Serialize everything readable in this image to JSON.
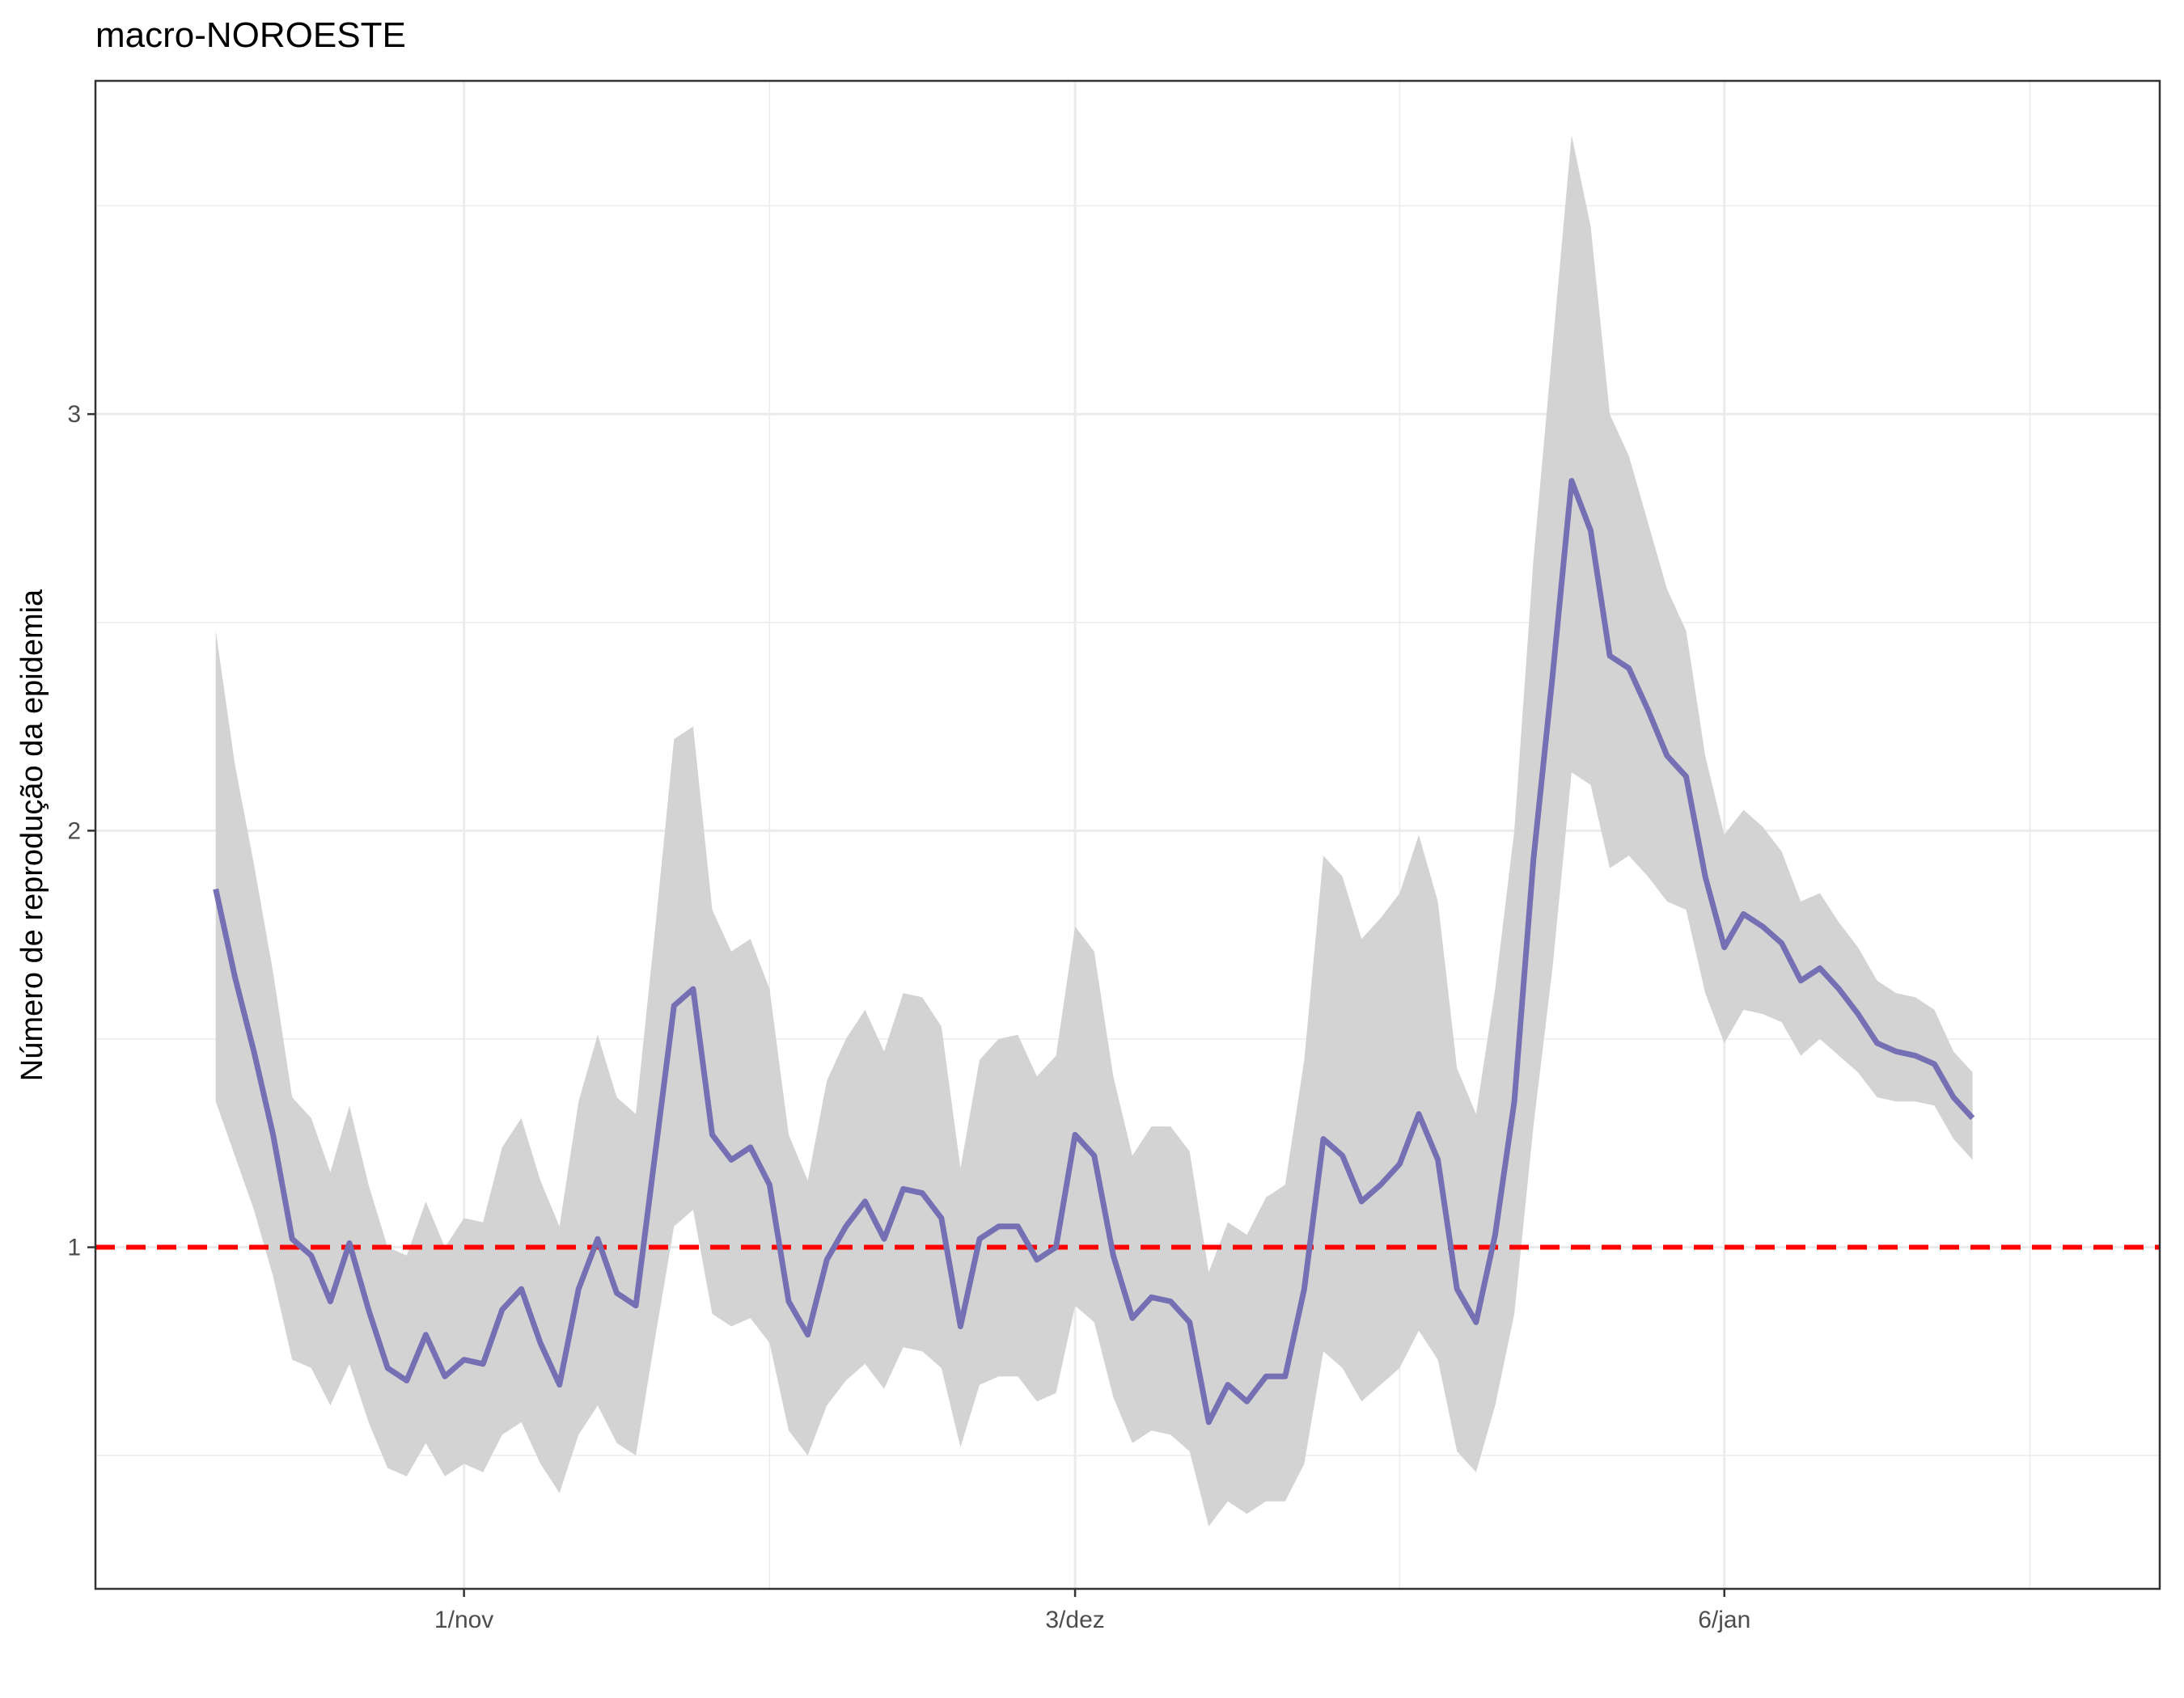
{
  "chart_data": {
    "type": "line",
    "title": "macro-NOROESTE",
    "xlabel": "",
    "ylabel": "Número de reprodução da epidemia",
    "x_start": "2020-10-19",
    "x_ticks": [
      {
        "day": 13,
        "label": "1/nov"
      },
      {
        "day": 45,
        "label": "3/dez"
      },
      {
        "day": 79,
        "label": "6/jan"
      }
    ],
    "x_minor_ticks": [
      29,
      62,
      95
    ],
    "xlim": [
      -6.3,
      101.8
    ],
    "ylim": [
      0.18,
      3.8
    ],
    "y_ticks": [
      1,
      2,
      3
    ],
    "y_minor_ticks": [
      0.5,
      1.5,
      2.5,
      3.5
    ],
    "grid": true,
    "reference_line": {
      "y": 1,
      "color": "#ff0000",
      "style": "dashed"
    },
    "series": [
      {
        "name": "",
        "color": "#7570b3",
        "kind": "line",
        "values": [
          1.86,
          1.65,
          1.47,
          1.27,
          1.02,
          0.98,
          0.87,
          1.01,
          0.85,
          0.71,
          0.68,
          0.79,
          0.69,
          0.73,
          0.72,
          0.85,
          0.9,
          0.77,
          0.67,
          0.9,
          1.02,
          0.89,
          0.86,
          1.22,
          1.58,
          1.62,
          1.27,
          1.21,
          1.24,
          1.15,
          0.87,
          0.79,
          0.97,
          1.05,
          1.11,
          1.02,
          1.14,
          1.13,
          1.07,
          0.81,
          1.02,
          1.05,
          1.05,
          0.97,
          1.0,
          1.27,
          1.22,
          0.98,
          0.83,
          0.88,
          0.87,
          0.82,
          0.58,
          0.67,
          0.63,
          0.69,
          0.69,
          0.9,
          1.26,
          1.22,
          1.11,
          1.15,
          1.2,
          1.32,
          1.21,
          0.9,
          0.82,
          1.03,
          1.35,
          1.93,
          2.37,
          2.84,
          2.72,
          2.42,
          2.39,
          2.29,
          2.18,
          2.13,
          1.89,
          1.72,
          1.8,
          1.77,
          1.73,
          1.64,
          1.67,
          1.62,
          1.56,
          1.49,
          1.47,
          1.46,
          1.44,
          1.36,
          1.31
        ]
      },
      {
        "name": "",
        "color": "#d3d3d3",
        "kind": "ribbon",
        "lower": [
          1.35,
          1.22,
          1.09,
          0.93,
          0.73,
          0.71,
          0.62,
          0.72,
          0.58,
          0.47,
          0.45,
          0.53,
          0.45,
          0.48,
          0.46,
          0.55,
          0.58,
          0.48,
          0.41,
          0.55,
          0.62,
          0.53,
          0.5,
          0.78,
          1.05,
          1.09,
          0.84,
          0.81,
          0.83,
          0.77,
          0.56,
          0.5,
          0.62,
          0.68,
          0.72,
          0.66,
          0.76,
          0.75,
          0.71,
          0.52,
          0.67,
          0.69,
          0.69,
          0.63,
          0.65,
          0.86,
          0.82,
          0.64,
          0.53,
          0.56,
          0.55,
          0.51,
          0.33,
          0.39,
          0.36,
          0.39,
          0.39,
          0.48,
          0.75,
          0.71,
          0.63,
          0.67,
          0.71,
          0.8,
          0.73,
          0.51,
          0.46,
          0.62,
          0.84,
          1.29,
          1.67,
          2.14,
          2.11,
          1.91,
          1.94,
          1.89,
          1.83,
          1.81,
          1.61,
          1.49,
          1.57,
          1.56,
          1.54,
          1.46,
          1.5,
          1.46,
          1.42,
          1.36,
          1.35,
          1.35,
          1.34,
          1.26,
          1.21
        ],
        "upper": [
          2.48,
          2.16,
          1.92,
          1.66,
          1.36,
          1.31,
          1.18,
          1.34,
          1.15,
          1.0,
          0.98,
          1.11,
          1.0,
          1.07,
          1.06,
          1.24,
          1.31,
          1.16,
          1.05,
          1.35,
          1.51,
          1.36,
          1.32,
          1.76,
          2.22,
          2.25,
          1.81,
          1.71,
          1.74,
          1.62,
          1.27,
          1.16,
          1.4,
          1.5,
          1.57,
          1.47,
          1.61,
          1.6,
          1.53,
          1.19,
          1.45,
          1.5,
          1.51,
          1.41,
          1.46,
          1.77,
          1.71,
          1.41,
          1.22,
          1.29,
          1.29,
          1.23,
          0.94,
          1.06,
          1.03,
          1.12,
          1.15,
          1.45,
          1.94,
          1.89,
          1.74,
          1.79,
          1.85,
          1.99,
          1.83,
          1.43,
          1.32,
          1.62,
          2.0,
          2.65,
          3.16,
          3.67,
          3.45,
          3.0,
          2.9,
          2.74,
          2.58,
          2.48,
          2.18,
          1.99,
          2.05,
          2.01,
          1.95,
          1.83,
          1.85,
          1.78,
          1.72,
          1.64,
          1.61,
          1.6,
          1.57,
          1.47,
          1.42
        ]
      }
    ]
  }
}
